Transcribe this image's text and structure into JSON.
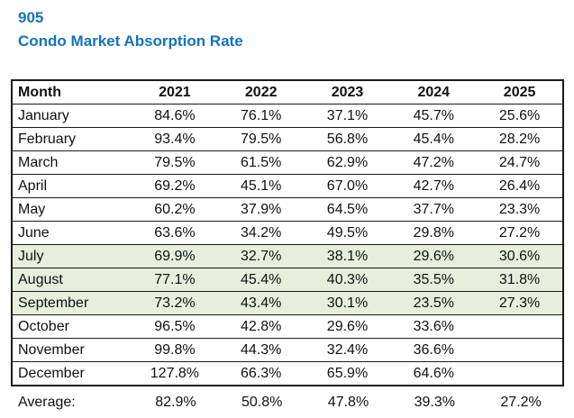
{
  "page": {
    "title_line1": "905",
    "title_line2": "Condo Market Absorption Rate",
    "title_color": "#1473BD"
  },
  "table": {
    "columns": [
      "Month",
      "2021",
      "2022",
      "2023",
      "2024",
      "2025"
    ],
    "highlight_color": "#E5EFDC",
    "rows": [
      {
        "month": "January",
        "values": [
          "84.6%",
          "76.1%",
          "37.1%",
          "45.7%",
          "25.6%"
        ],
        "highlighted": false
      },
      {
        "month": "February",
        "values": [
          "93.4%",
          "79.5%",
          "56.8%",
          "45.4%",
          "28.2%"
        ],
        "highlighted": false
      },
      {
        "month": "March",
        "values": [
          "79.5%",
          "61.5%",
          "62.9%",
          "47.2%",
          "24.7%"
        ],
        "highlighted": false
      },
      {
        "month": "April",
        "values": [
          "69.2%",
          "45.1%",
          "67.0%",
          "42.7%",
          "26.4%"
        ],
        "highlighted": false
      },
      {
        "month": "May",
        "values": [
          "60.2%",
          "37.9%",
          "64.5%",
          "37.7%",
          "23.3%"
        ],
        "highlighted": false
      },
      {
        "month": "June",
        "values": [
          "63.6%",
          "34.2%",
          "49.5%",
          "29.8%",
          "27.2%"
        ],
        "highlighted": false
      },
      {
        "month": "July",
        "values": [
          "69.9%",
          "32.7%",
          "38.1%",
          "29.6%",
          "30.6%"
        ],
        "highlighted": true
      },
      {
        "month": "August",
        "values": [
          "77.1%",
          "45.4%",
          "40.3%",
          "35.5%",
          "31.8%"
        ],
        "highlighted": true
      },
      {
        "month": "September",
        "values": [
          "73.2%",
          "43.4%",
          "30.1%",
          "23.5%",
          "27.3%"
        ],
        "highlighted": true
      },
      {
        "month": "October",
        "values": [
          "96.5%",
          "42.8%",
          "29.6%",
          "33.6%",
          ""
        ],
        "highlighted": false
      },
      {
        "month": "November",
        "values": [
          "99.8%",
          "44.3%",
          "32.4%",
          "36.6%",
          ""
        ],
        "highlighted": false
      },
      {
        "month": "December",
        "values": [
          "127.8%",
          "66.3%",
          "65.9%",
          "64.6%",
          ""
        ],
        "highlighted": false
      }
    ],
    "average": {
      "label": "Average:",
      "values": [
        "82.9%",
        "50.8%",
        "47.8%",
        "39.3%",
        "27.2%"
      ]
    }
  },
  "chart_data": {
    "type": "table",
    "title": "905 Condo Market Absorption Rate",
    "unit": "%",
    "categories": [
      "January",
      "February",
      "March",
      "April",
      "May",
      "June",
      "July",
      "August",
      "September",
      "October",
      "November",
      "December"
    ],
    "series": [
      {
        "name": "2021",
        "values": [
          84.6,
          93.4,
          79.5,
          69.2,
          60.2,
          63.6,
          69.9,
          77.1,
          73.2,
          96.5,
          99.8,
          127.8
        ],
        "average": 82.9
      },
      {
        "name": "2022",
        "values": [
          76.1,
          79.5,
          61.5,
          45.1,
          37.9,
          34.2,
          32.7,
          45.4,
          43.4,
          42.8,
          44.3,
          66.3
        ],
        "average": 50.8
      },
      {
        "name": "2023",
        "values": [
          37.1,
          56.8,
          62.9,
          67.0,
          64.5,
          49.5,
          38.1,
          40.3,
          30.1,
          29.6,
          32.4,
          65.9
        ],
        "average": 47.8
      },
      {
        "name": "2024",
        "values": [
          45.7,
          45.4,
          47.2,
          42.7,
          37.7,
          29.8,
          29.6,
          35.5,
          23.5,
          33.6,
          36.6,
          64.6
        ],
        "average": 39.3
      },
      {
        "name": "2025",
        "values": [
          25.6,
          28.2,
          24.7,
          26.4,
          23.3,
          27.2,
          30.6,
          31.8,
          27.3,
          null,
          null,
          null
        ],
        "average": 27.2
      }
    ],
    "highlighted_rows": [
      "July",
      "August",
      "September"
    ]
  }
}
